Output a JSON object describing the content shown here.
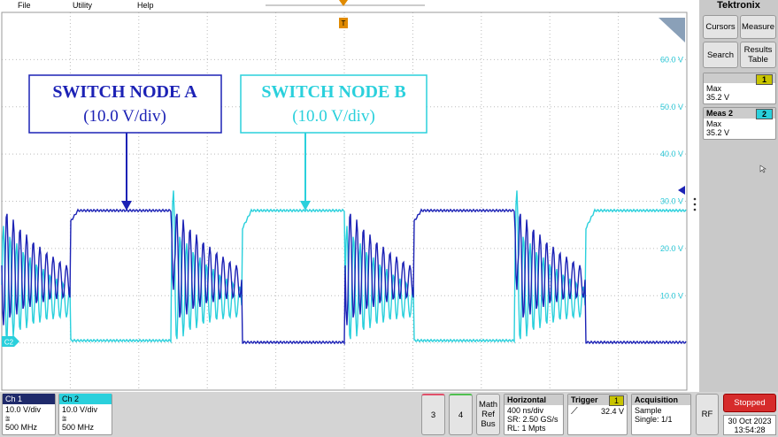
{
  "menu": [
    "File",
    "Utility",
    "Help"
  ],
  "scope": {
    "ch_marker": "C2",
    "trigger_marker": "T",
    "level_labels": [
      "60.0 V",
      "50.0 V",
      "40.0 V",
      "30.0 V",
      "20.0 V",
      "10.0 V"
    ]
  },
  "annotations": [
    {
      "title": "SWITCH NODE A",
      "scale": "(10.0 V/div)"
    },
    {
      "title": "SWITCH NODE B",
      "scale": "(10.0 V/div)"
    }
  ],
  "side_panel": {
    "brand": "Tektronix",
    "buttons": [
      "Cursors",
      "Measure",
      "Search",
      "Results Table"
    ],
    "measurements": [
      {
        "badge": "1",
        "label": "Max",
        "value": "35.2 V"
      },
      {
        "name": "Meas 2",
        "badge": "2",
        "label": "Max",
        "value": "35.2 V"
      }
    ]
  },
  "bottom_bar": {
    "channels": [
      {
        "name": "Ch 1",
        "scale": "10.0 V/div",
        "bandwidth": "500 MHz"
      },
      {
        "name": "Ch 2",
        "scale": "10.0 V/div",
        "bandwidth": "500 MHz"
      }
    ],
    "buttons": [
      "3",
      "4"
    ],
    "math_ref_bus": [
      "Math",
      "Ref",
      "Bus"
    ],
    "horizontal": {
      "title": "Horizontal",
      "lines": [
        "400 ns/div",
        "SR: 2.50 GS/s",
        "RL: 1 Mpts"
      ]
    },
    "trigger": {
      "title": "Trigger",
      "source": "1",
      "level": "32.4 V"
    },
    "acquisition": {
      "title": "Acquisition",
      "lines": [
        "Sample",
        "Single: 1/1"
      ]
    },
    "rf": "RF",
    "status": "Stopped",
    "date": "30 Oct 2023",
    "time": "13:54:28"
  }
}
